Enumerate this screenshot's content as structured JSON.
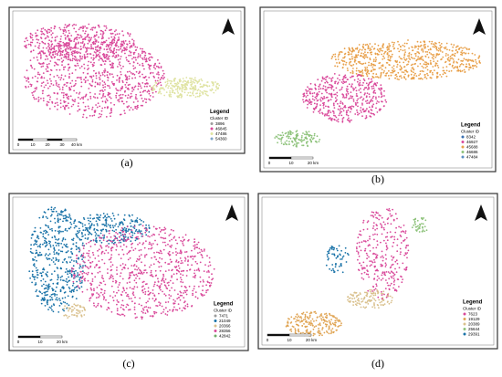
{
  "panels": [
    {
      "caption": "(a)",
      "legend_title": "Legend",
      "legend_subtitle": "Cluster ID",
      "entries": [
        {
          "label": "3896",
          "color": "#9b9b9b"
        },
        {
          "label": "46845",
          "color": "#d9499a"
        },
        {
          "label": "47486",
          "color": "#dfe3a2"
        },
        {
          "label": "54360",
          "color": "#7fa6c9"
        }
      ],
      "scale_labels": [
        "0",
        "10",
        "20",
        "30",
        "40 km"
      ]
    },
    {
      "caption": "(b)",
      "legend_title": "Legend",
      "legend_subtitle": "Cluster ID",
      "entries": [
        {
          "label": "8342",
          "color": "#3a6fb0"
        },
        {
          "label": "46927",
          "color": "#d9499a"
        },
        {
          "label": "45688",
          "color": "#e8a04a"
        },
        {
          "label": "46686",
          "color": "#8dc27a"
        },
        {
          "label": "47484",
          "color": "#5a8fc0"
        }
      ],
      "scale_labels": [
        "0",
        "10",
        "20 km"
      ]
    },
    {
      "caption": "(c)",
      "legend_title": "Legend",
      "legend_subtitle": "Cluster ID",
      "entries": [
        {
          "label": "7471",
          "color": "#9b9b9b"
        },
        {
          "label": "21049",
          "color": "#1a73a8"
        },
        {
          "label": "20366",
          "color": "#d9c08c"
        },
        {
          "label": "28356",
          "color": "#d9499a"
        },
        {
          "label": "42842",
          "color": "#6fae6a"
        }
      ],
      "scale_labels": [
        "0",
        "10",
        "20 km"
      ]
    },
    {
      "caption": "(d)",
      "legend_title": "Legend",
      "legend_subtitle": "Cluster ID",
      "entries": [
        {
          "label": "7623",
          "color": "#d9499a"
        },
        {
          "label": "19129",
          "color": "#e0a453"
        },
        {
          "label": "20389",
          "color": "#d9c08c"
        },
        {
          "label": "25644",
          "color": "#8dc27a"
        },
        {
          "label": "29391",
          "color": "#1a73a8"
        }
      ],
      "scale_labels": [
        "0",
        "10",
        "20 km"
      ]
    }
  ]
}
